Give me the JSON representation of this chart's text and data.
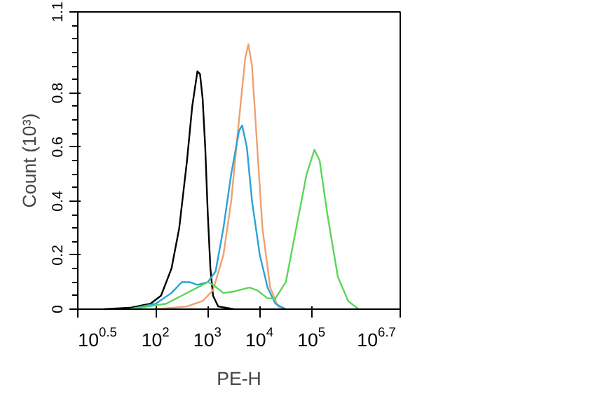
{
  "chart_data": {
    "type": "line",
    "xlabel": "PE-H",
    "ylabel": "Count (10³)",
    "log": "x",
    "xlim": [
      3.162,
      5011872
    ],
    "xticks": [
      {
        "value": 3.162,
        "label": "10$^{0.5}$"
      },
      {
        "value": 100,
        "label": "10$^{2}$"
      },
      {
        "value": 1000,
        "label": "10$^{3}$"
      },
      {
        "value": 10000,
        "label": "10$^{4}$"
      },
      {
        "value": 100000,
        "label": "10$^{5}$"
      },
      {
        "value": 5011872,
        "label": "10$^{6.7}$"
      }
    ],
    "ylim": [
      0,
      1.1
    ],
    "yticks": [
      0,
      0.2,
      0.4,
      0.6,
      0.8,
      1.1
    ],
    "grid": false,
    "marker": "none",
    "line_style": "solid",
    "series": [
      {
        "color": "#000000",
        "x": [
          10,
          31.6,
          79,
          126,
          200,
          282,
          398,
          501,
          631,
          708,
          794,
          891,
          1000,
          1122,
          1259,
          1585,
          3162
        ],
        "values": [
          0,
          0.005,
          0.02,
          0.05,
          0.15,
          0.3,
          0.55,
          0.75,
          0.88,
          0.87,
          0.78,
          0.6,
          0.35,
          0.15,
          0.05,
          0.01,
          0
        ]
      },
      {
        "color": "#f0a070",
        "x": [
          100,
          398,
          794,
          1259,
          1995,
          2818,
          3981,
          5248,
          6026,
          7079,
          8913,
          11220,
          15849,
          22387,
          31623
        ],
        "values": [
          0,
          0.01,
          0.03,
          0.07,
          0.2,
          0.4,
          0.7,
          0.93,
          0.98,
          0.9,
          0.6,
          0.3,
          0.08,
          0.01,
          0
        ]
      },
      {
        "color": "#29a3d6",
        "x": [
          31.6,
          100,
          200,
          316,
          447,
          631,
          1000,
          1413,
          1995,
          2818,
          3981,
          4571,
          5623,
          7079,
          10000,
          14125,
          19953,
          31623
        ],
        "values": [
          0,
          0.02,
          0.06,
          0.1,
          0.1,
          0.09,
          0.1,
          0.14,
          0.3,
          0.5,
          0.66,
          0.68,
          0.6,
          0.4,
          0.2,
          0.08,
          0.02,
          0
        ]
      },
      {
        "color": "#5ad65a",
        "x": [
          31.6,
          158,
          316,
          631,
          1000,
          1259,
          1995,
          3162,
          6310,
          8913,
          14125,
          19953,
          31623,
          50119,
          79433,
          112202,
          141254,
          199526,
          316228,
          501187,
          794328
        ],
        "values": [
          0,
          0.02,
          0.05,
          0.08,
          0.1,
          0.09,
          0.06,
          0.065,
          0.08,
          0.07,
          0.04,
          0.04,
          0.1,
          0.3,
          0.5,
          0.59,
          0.55,
          0.35,
          0.12,
          0.03,
          0
        ]
      }
    ]
  }
}
